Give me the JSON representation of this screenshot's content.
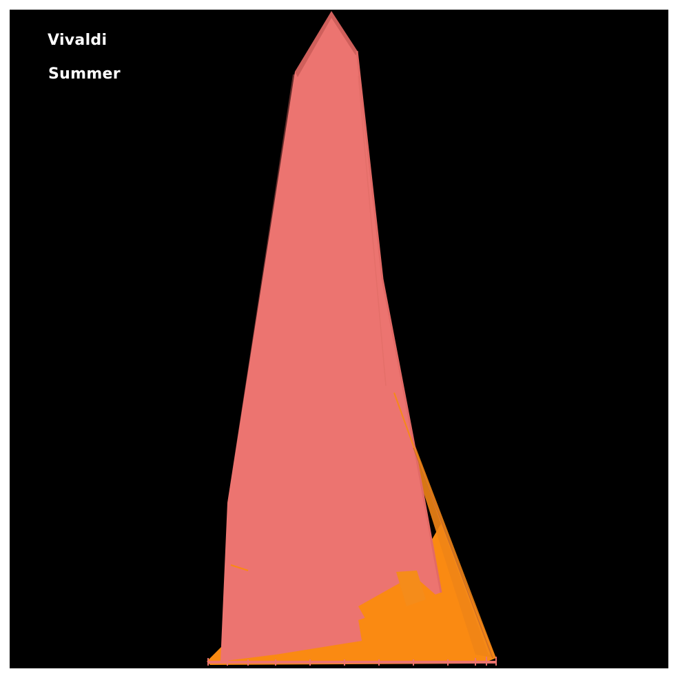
{
  "labels": {
    "composer": "Vivaldi",
    "piece": "Summer"
  },
  "colors": {
    "background": "#000000",
    "frame": "#ffffff",
    "primary_fill": "#ec7470",
    "primary_dark": "#8a3c38",
    "secondary_fill": "#fa8a12",
    "text": "#ffffff"
  }
}
